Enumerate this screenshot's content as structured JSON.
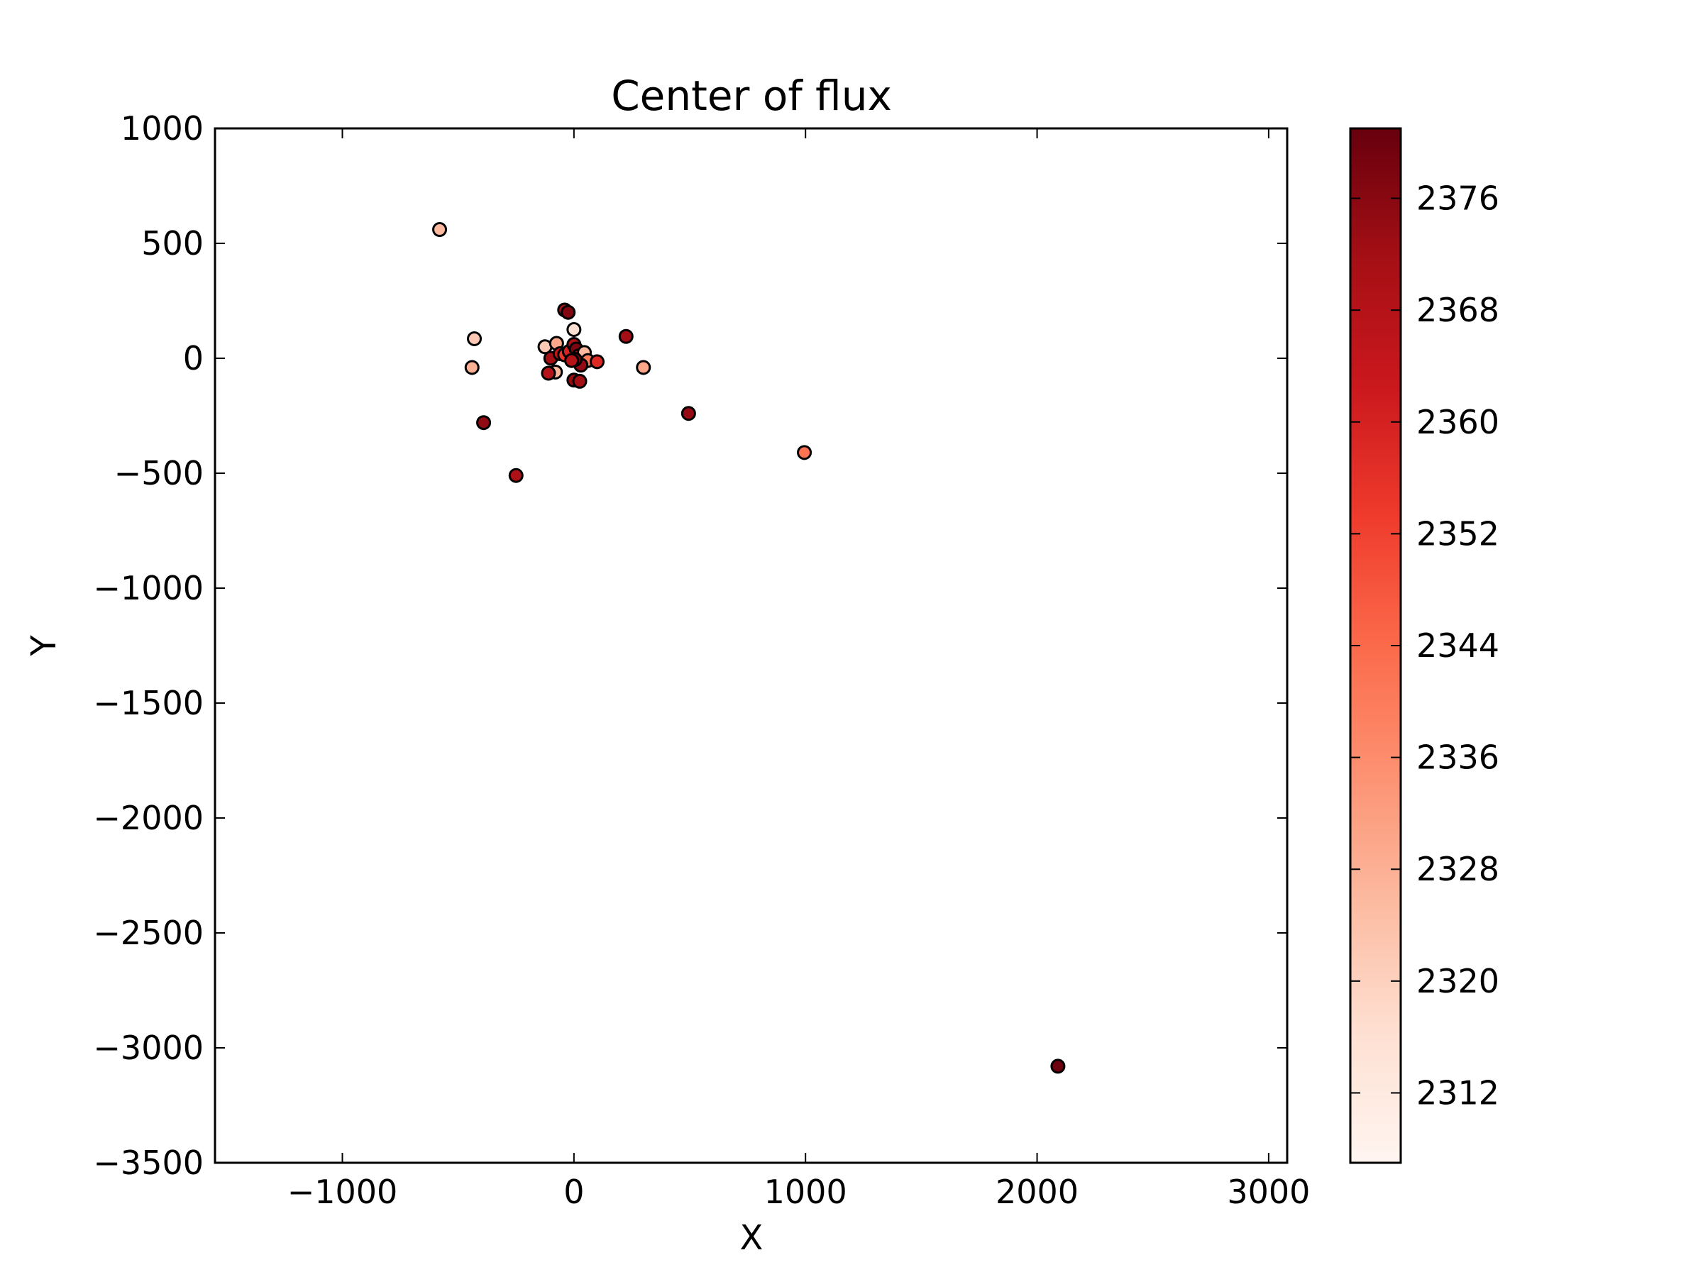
{
  "chart_data": {
    "type": "scatter",
    "title": "Center of flux",
    "xlabel": "X",
    "ylabel": "Y",
    "xlim": [
      -1550,
      3080
    ],
    "ylim": [
      -3500,
      1000
    ],
    "x_ticks": [
      -1000,
      0,
      1000,
      2000,
      3000
    ],
    "y_ticks": [
      1000,
      500,
      0,
      -500,
      -1000,
      -1500,
      -2000,
      -2500,
      -3000,
      -3500
    ],
    "grid": false,
    "colorbar": {
      "cmap": "Reds",
      "vmin": 2307,
      "vmax": 2381,
      "ticks": [
        2312,
        2320,
        2328,
        2336,
        2344,
        2352,
        2360,
        2368,
        2376
      ],
      "colors": [
        "#fff5f0",
        "#fee0d2",
        "#fcbba1",
        "#fc9272",
        "#fb6a4a",
        "#ef3b2c",
        "#cb181d",
        "#a50f15",
        "#67000d"
      ]
    },
    "marker_edge_color": "#000000",
    "points": [
      {
        "x": -580,
        "y": 560,
        "c": 2326
      },
      {
        "x": -430,
        "y": 85,
        "c": 2322
      },
      {
        "x": -440,
        "y": -40,
        "c": 2328
      },
      {
        "x": -390,
        "y": -280,
        "c": 2375
      },
      {
        "x": -250,
        "y": -510,
        "c": 2370
      },
      {
        "x": -40,
        "y": 210,
        "c": 2370
      },
      {
        "x": -25,
        "y": 200,
        "c": 2377
      },
      {
        "x": 0,
        "y": 125,
        "c": 2316
      },
      {
        "x": -125,
        "y": 50,
        "c": 2322
      },
      {
        "x": -75,
        "y": 65,
        "c": 2330
      },
      {
        "x": -100,
        "y": 0,
        "c": 2372
      },
      {
        "x": -60,
        "y": 20,
        "c": 2366
      },
      {
        "x": -40,
        "y": 15,
        "c": 2354
      },
      {
        "x": -20,
        "y": 30,
        "c": 2360
      },
      {
        "x": 0,
        "y": 60,
        "c": 2370
      },
      {
        "x": 10,
        "y": 40,
        "c": 2378
      },
      {
        "x": 20,
        "y": 10,
        "c": 2364
      },
      {
        "x": 45,
        "y": 25,
        "c": 2326
      },
      {
        "x": 60,
        "y": -10,
        "c": 2340
      },
      {
        "x": 30,
        "y": -30,
        "c": 2374
      },
      {
        "x": 5,
        "y": -5,
        "c": 2379
      },
      {
        "x": -10,
        "y": -10,
        "c": 2368
      },
      {
        "x": -80,
        "y": -60,
        "c": 2326
      },
      {
        "x": -110,
        "y": -65,
        "c": 2368
      },
      {
        "x": 0,
        "y": -95,
        "c": 2374
      },
      {
        "x": 25,
        "y": -100,
        "c": 2372
      },
      {
        "x": 100,
        "y": -15,
        "c": 2358
      },
      {
        "x": 225,
        "y": 95,
        "c": 2372
      },
      {
        "x": 300,
        "y": -40,
        "c": 2330
      },
      {
        "x": 495,
        "y": -240,
        "c": 2374
      },
      {
        "x": 995,
        "y": -410,
        "c": 2342
      },
      {
        "x": 2090,
        "y": -3080,
        "c": 2380
      }
    ]
  }
}
